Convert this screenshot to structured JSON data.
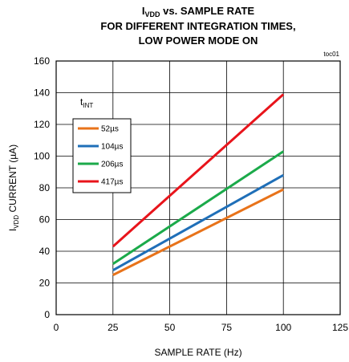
{
  "chart_data": {
    "type": "line",
    "title_parts": {
      "prefix": "I",
      "subscript": "VDD",
      "suffix": " vs. SAMPLE RATE"
    },
    "title_lines": [
      "FOR DIFFERENT INTEGRATION TIMES,",
      "LOW POWER MODE ON"
    ],
    "tag": "toc01",
    "xlabel": "SAMPLE RATE (Hz)",
    "ylabel_parts": {
      "prefix": "I",
      "subscript": "VDD",
      "suffix": " CURRENT (µA)"
    },
    "xlim": [
      0,
      125
    ],
    "ylim": [
      0,
      160
    ],
    "xticks": [
      0,
      25,
      50,
      75,
      100,
      125
    ],
    "yticks": [
      0,
      20,
      40,
      60,
      80,
      100,
      120,
      140,
      160
    ],
    "grid": true,
    "legend": {
      "title_prefix": "t",
      "title_subscript": "INT",
      "placement": "top-left"
    },
    "series": [
      {
        "name": "52µs",
        "color": "#E8731A",
        "x": [
          25,
          100
        ],
        "y": [
          25,
          79
        ]
      },
      {
        "name": "104µs",
        "color": "#1F6FB8",
        "x": [
          25,
          100
        ],
        "y": [
          28,
          88
        ]
      },
      {
        "name": "206µs",
        "color": "#1BAA4A",
        "x": [
          25,
          100
        ],
        "y": [
          32,
          103
        ]
      },
      {
        "name": "417µs",
        "color": "#E8141B",
        "x": [
          25,
          100
        ],
        "y": [
          43,
          139
        ]
      }
    ]
  }
}
